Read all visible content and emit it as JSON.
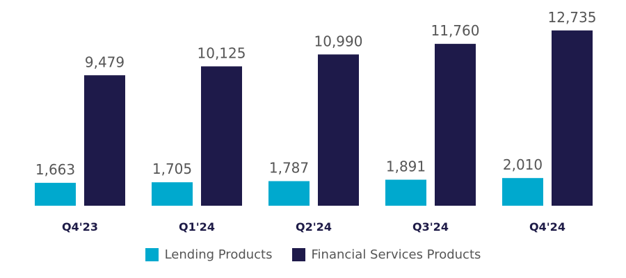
{
  "chart_data": {
    "type": "bar",
    "categories": [
      "Q4'23",
      "Q1'24",
      "Q2'24",
      "Q3'24",
      "Q4'24"
    ],
    "series": [
      {
        "name": "Lending Products",
        "color": "#00a9ce",
        "values": [
          1663,
          1705,
          1787,
          1891,
          2010
        ],
        "labels": [
          "1,663",
          "1,705",
          "1,787",
          "1,891",
          "2,010"
        ]
      },
      {
        "name": "Financial Services Products",
        "color": "#1e1a4a",
        "values": [
          9479,
          10125,
          10990,
          11760,
          12735
        ],
        "labels": [
          "9,479",
          "10,125",
          "10,990",
          "11,760",
          "12,735"
        ]
      }
    ],
    "ylim": [
      0,
      13000
    ],
    "grid": false,
    "legend_position": "bottom-center"
  }
}
